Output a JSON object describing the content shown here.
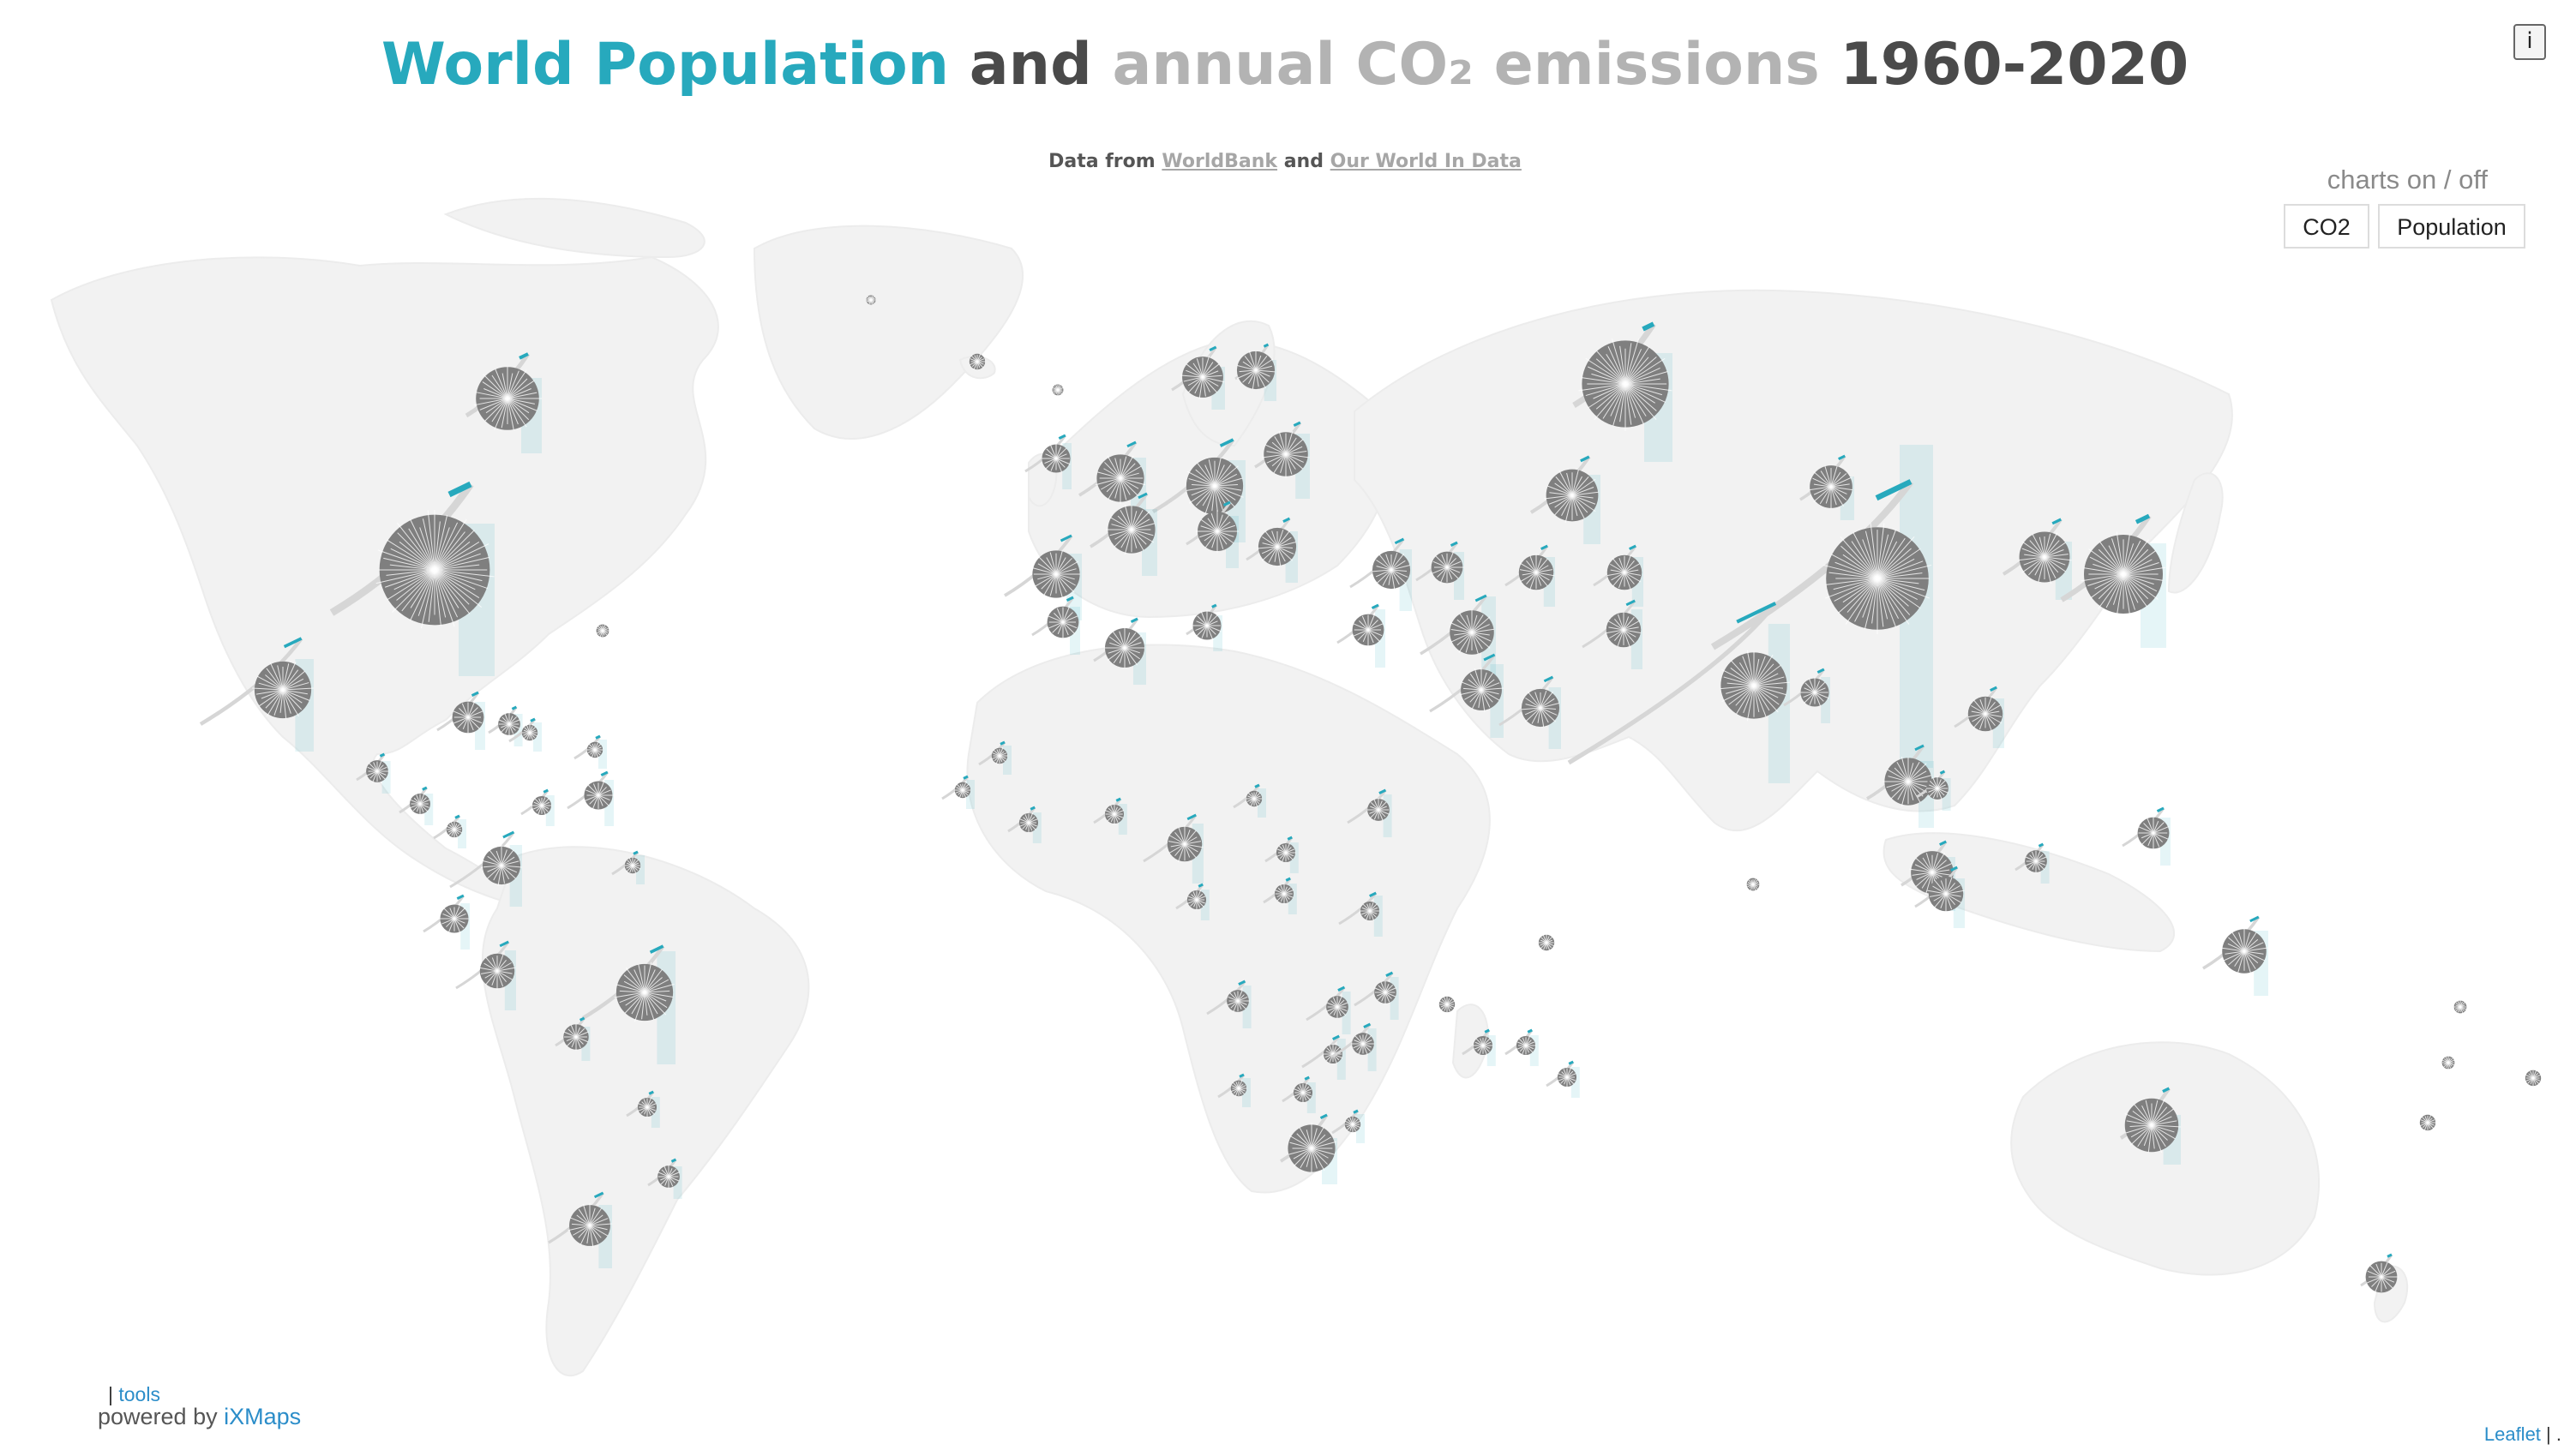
{
  "title": {
    "part1": "World Population",
    "part2": "and",
    "part3": "annual CO₂ emissions",
    "part4": "1960-2020"
  },
  "subtitle": {
    "prefix": "Data from",
    "link1": "WorldBank",
    "middle": "and",
    "link2": "Our World In Data"
  },
  "info_button": "i",
  "charts_toggle": {
    "label": "charts on / off",
    "co2_button": "CO2",
    "population_button": "Population"
  },
  "footer": {
    "tools_sep": "|",
    "tools": "tools",
    "powered_prefix": "powered by",
    "powered_link": "iXMaps",
    "attribution_link": "Leaflet",
    "attribution_sep": "| ."
  },
  "colors": {
    "population": "#27a9bd",
    "co2": "#b3b3b3",
    "land": "#f2f2f2",
    "glyph": "#7f7f7f"
  }
}
